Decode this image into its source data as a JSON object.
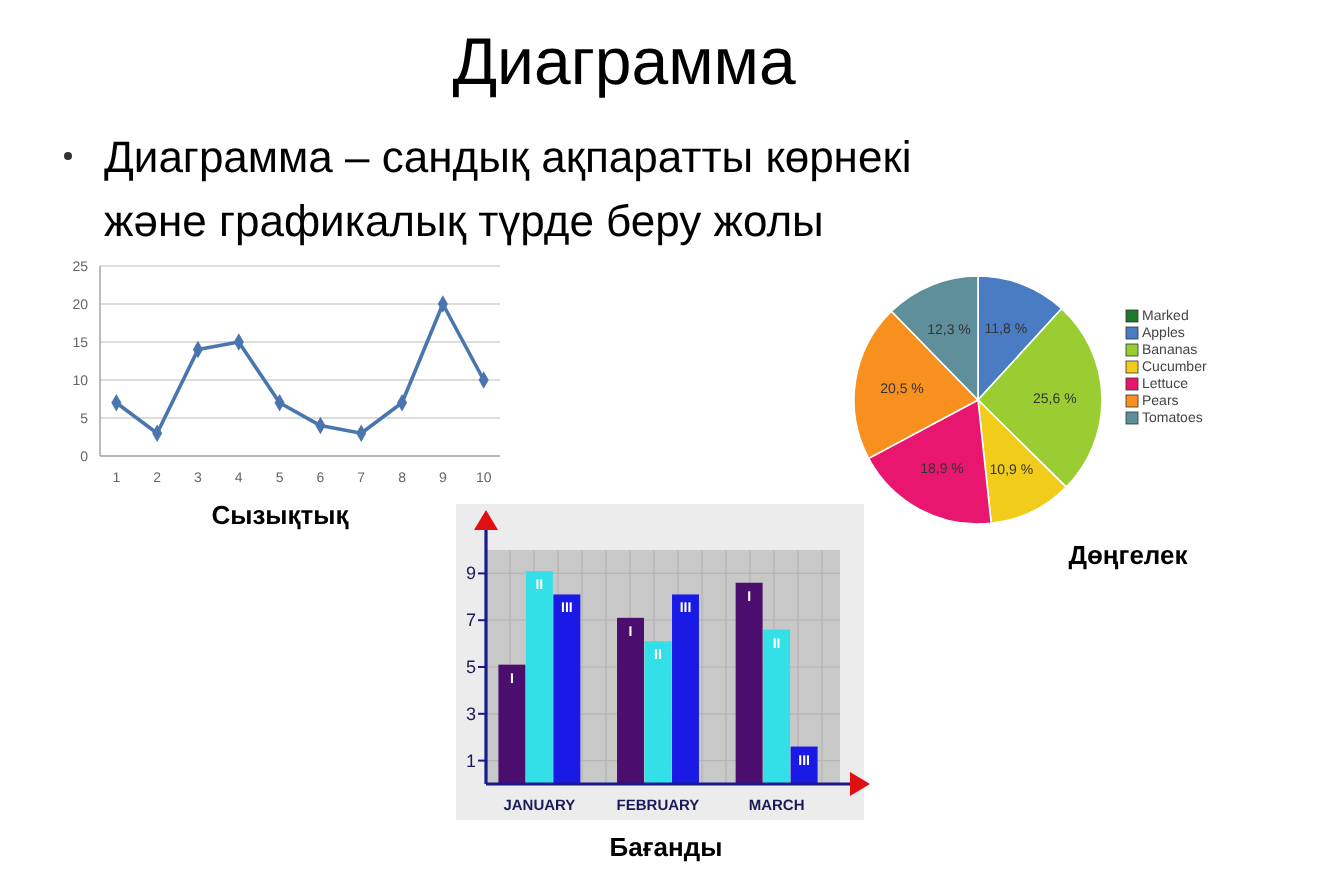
{
  "chart_data": [
    {
      "type": "other",
      "title": "Диаграмма",
      "subtitle": "Диаграмма – сандық ақпаратты көрнекі және графикалық түрде беру жолы"
    },
    {
      "type": "line",
      "title": "Сызықтық",
      "x": [
        1,
        2,
        3,
        4,
        5,
        6,
        7,
        8,
        9,
        10
      ],
      "values": [
        7,
        3,
        14,
        15,
        7,
        4,
        3,
        7,
        20,
        10
      ],
      "color": "#4a76b0",
      "marker": "diamond",
      "xlim": [
        0.6,
        10.4
      ],
      "xticks": [
        1,
        2,
        3,
        4,
        5,
        6,
        7,
        8,
        9,
        10
      ],
      "ylim": [
        0,
        25
      ],
      "yticks": [
        0,
        5,
        10,
        15,
        20,
        25
      ],
      "grid": "y"
    },
    {
      "type": "pie",
      "title": "Дөңгелек",
      "categories": [
        "Marked",
        "Apples",
        "Bananas",
        "Cucumber",
        "Lettuce",
        "Pears",
        "Tomatoes"
      ],
      "values": [
        0,
        11.8,
        25.6,
        10.9,
        18.9,
        20.5,
        12.3
      ],
      "colors": [
        "#1a7a2a",
        "#4a7cc4",
        "#9acd32",
        "#f2cc1a",
        "#e8166e",
        "#f7901e",
        "#5f8f9a"
      ],
      "value_labels": [
        null,
        "11,8 %",
        "25,6 %",
        "10,9 %",
        "18,9 %",
        "20,5 %",
        "12,3 %"
      ],
      "legend": "right"
    },
    {
      "type": "bar",
      "title": "Бағанды",
      "categories": [
        "JANUARY",
        "FEBRUARY",
        "MARCH"
      ],
      "ylim": [
        0,
        10
      ],
      "yticks": [
        1,
        3,
        5,
        7,
        9
      ],
      "grid": true,
      "series": [
        {
          "name": "I",
          "color": "#4b0d6e",
          "values": [
            5.1,
            7.1,
            8.6
          ]
        },
        {
          "name": "II",
          "color": "#33e0e8",
          "values": [
            9.1,
            6.1,
            6.6
          ]
        },
        {
          "name": "III",
          "color": "#1a1ae6",
          "values": [
            8.1,
            8.1,
            1.6
          ]
        }
      ]
    }
  ]
}
